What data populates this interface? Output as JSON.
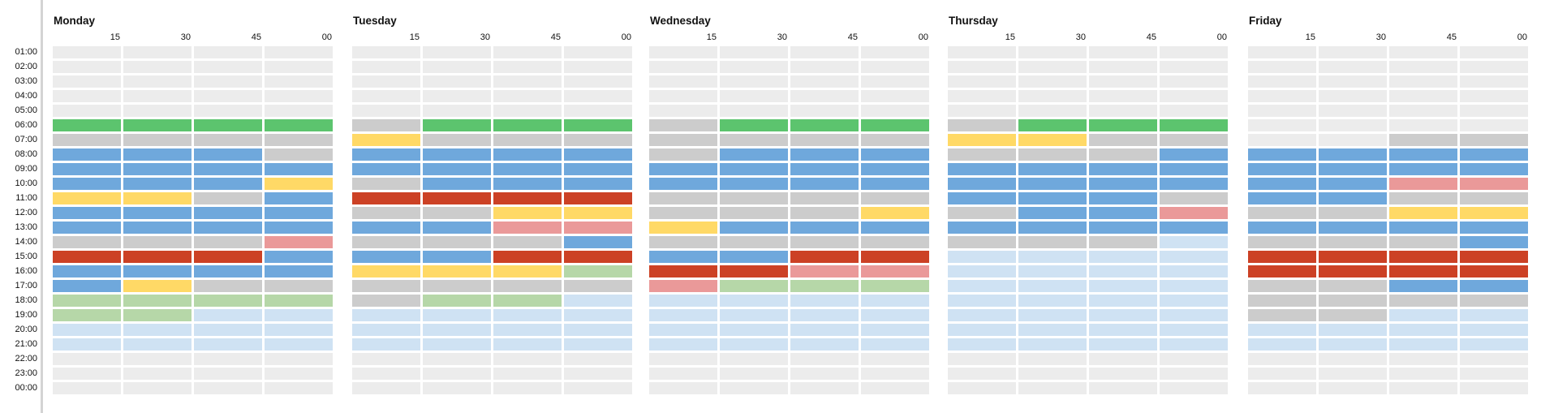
{
  "hours": [
    "01:00",
    "02:00",
    "03:00",
    "04:00",
    "05:00",
    "06:00",
    "07:00",
    "08:00",
    "09:00",
    "10:00",
    "11:00",
    "12:00",
    "13:00",
    "14:00",
    "15:00",
    "16:00",
    "17:00",
    "18:00",
    "19:00",
    "20:00",
    "21:00",
    "22:00",
    "23:00",
    "00:00"
  ],
  "minute_labels": [
    "15",
    "30",
    "45",
    "00"
  ],
  "legend_colors": {
    "E": "#ececec",
    "G": "#5cc46e",
    "B": "#6fa8dc",
    "Y": "#ffd966",
    "R": "#cc4125",
    "P": "#ea9999",
    "L": "#b6d7a8",
    "S": "#cfe2f3",
    "D": "#cccccc"
  },
  "days": [
    {
      "name": "Monday",
      "cells": [
        "EEEE",
        "EEEE",
        "EEEE",
        "EEEE",
        "EEEE",
        "GGGG",
        "DDDD",
        "BBBD",
        "BBBB",
        "BBBY",
        "YYDB",
        "BBBB",
        "BBBB",
        "DDDP",
        "RRRB",
        "BBBB",
        "BYDD",
        "LLLL",
        "LLSS",
        "SSSS",
        "SSSS",
        "EEEE",
        "EEEE",
        "EEEE"
      ]
    },
    {
      "name": "Tuesday",
      "cells": [
        "EEEE",
        "EEEE",
        "EEEE",
        "EEEE",
        "EEEE",
        "DGGG",
        "YDDD",
        "BBBB",
        "BBBB",
        "DBBB",
        "RRRR",
        "DDYY",
        "BBPP",
        "DDDB",
        "BBRR",
        "YYYL",
        "DDDD",
        "DLLS",
        "SSSS",
        "SSSS",
        "SSSS",
        "EEEE",
        "EEEE",
        "EEEE"
      ]
    },
    {
      "name": "Wednesday",
      "cells": [
        "EEEE",
        "EEEE",
        "EEEE",
        "EEEE",
        "EEEE",
        "DGGG",
        "DDDD",
        "DBBB",
        "BBBB",
        "BBBB",
        "DDDD",
        "DDDY",
        "YBBB",
        "DDDD",
        "BBRR",
        "RRPP",
        "PLLL",
        "SSSS",
        "SSSS",
        "SSSS",
        "SSSS",
        "EEEE",
        "EEEE",
        "EEEE"
      ]
    },
    {
      "name": "Thursday",
      "cells": [
        "EEEE",
        "EEEE",
        "EEEE",
        "EEEE",
        "EEEE",
        "DGGG",
        "YYDD",
        "DDDB",
        "BBBB",
        "BBBB",
        "BBBD",
        "DBBP",
        "BBBB",
        "DDDS",
        "SSSS",
        "SSSS",
        "SSSS",
        "SSSS",
        "SSSS",
        "SSSS",
        "SSSS",
        "EEEE",
        "EEEE",
        "EEEE"
      ]
    },
    {
      "name": "Friday",
      "cells": [
        "EEEE",
        "EEEE",
        "EEEE",
        "EEEE",
        "EEEE",
        "EEEE",
        "EEDD",
        "BBBB",
        "BBBB",
        "BBPP",
        "BBDD",
        "DDYY",
        "BBBB",
        "DDDB",
        "RRRR",
        "RRRR",
        "DDBB",
        "DDDD",
        "DDSS",
        "SSSS",
        "SSSS",
        "EEEE",
        "EEEE",
        "EEEE"
      ]
    }
  ]
}
